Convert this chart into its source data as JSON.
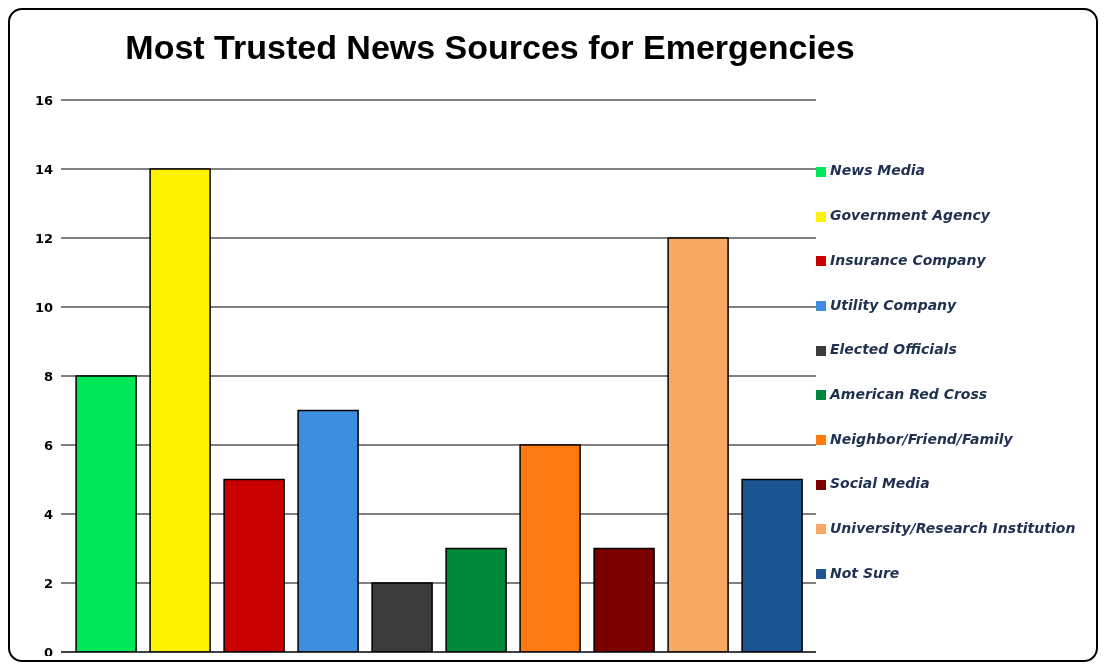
{
  "chart_data": {
    "type": "bar",
    "title": "Most Trusted News Sources for Emergencies",
    "categories": [
      null
    ],
    "series": [
      {
        "name": "News Media",
        "color": "#00e85a",
        "values": [
          8
        ]
      },
      {
        "name": "Government Agency",
        "color": "#fff200",
        "values": [
          14
        ]
      },
      {
        "name": "Insurance Company",
        "color": "#c80000",
        "values": [
          5
        ]
      },
      {
        "name": "Utility Company",
        "color": "#3d8ee0",
        "values": [
          7
        ]
      },
      {
        "name": "Elected Officials",
        "color": "#3c3c3c",
        "values": [
          2
        ]
      },
      {
        "name": "American Red Cross",
        "color": "#00883a",
        "values": [
          3
        ]
      },
      {
        "name": "Neighbor/Friend/Family",
        "color": "#ff7a10",
        "values": [
          6
        ]
      },
      {
        "name": "Social Media",
        "color": "#7a0000",
        "values": [
          3
        ]
      },
      {
        "name": "University/Research Institution",
        "color": "#f7a862",
        "values": [
          12
        ]
      },
      {
        "name": "Not Sure",
        "color": "#1c5592",
        "values": [
          5
        ]
      }
    ],
    "ylim": [
      0,
      16
    ],
    "yticks": [
      0,
      2,
      4,
      6,
      8,
      10,
      12,
      14,
      16
    ],
    "grid": "y",
    "legend": "right",
    "tick_labels": "y"
  }
}
